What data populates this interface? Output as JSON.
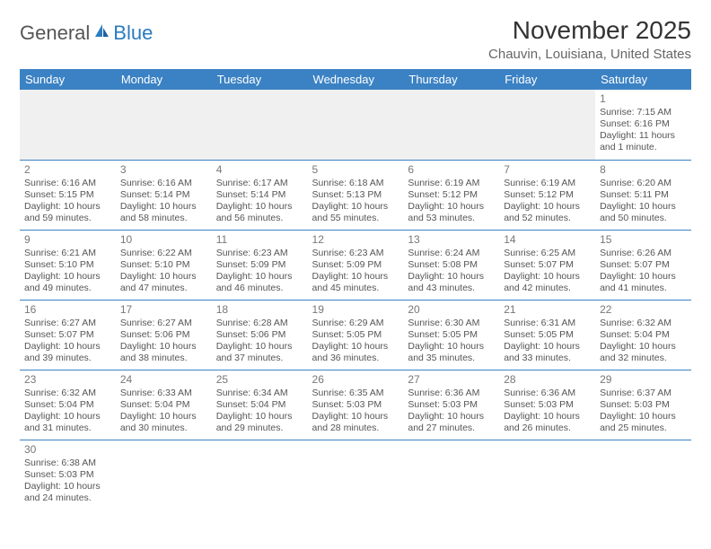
{
  "logo": {
    "general": "General",
    "blue": "Blue"
  },
  "month_title": "November 2025",
  "location": "Chauvin, Louisiana, United States",
  "colors": {
    "header_bg": "#3b82c4",
    "header_text": "#ffffff",
    "cell_border": "#3b82c4",
    "text": "#555555",
    "empty_bg": "#f0f0f0"
  },
  "weekdays": [
    "Sunday",
    "Monday",
    "Tuesday",
    "Wednesday",
    "Thursday",
    "Friday",
    "Saturday"
  ],
  "weeks": [
    [
      null,
      null,
      null,
      null,
      null,
      null,
      {
        "day": "1",
        "sunrise": "Sunrise: 7:15 AM",
        "sunset": "Sunset: 6:16 PM",
        "daylight1": "Daylight: 11 hours",
        "daylight2": "and 1 minute."
      }
    ],
    [
      {
        "day": "2",
        "sunrise": "Sunrise: 6:16 AM",
        "sunset": "Sunset: 5:15 PM",
        "daylight1": "Daylight: 10 hours",
        "daylight2": "and 59 minutes."
      },
      {
        "day": "3",
        "sunrise": "Sunrise: 6:16 AM",
        "sunset": "Sunset: 5:14 PM",
        "daylight1": "Daylight: 10 hours",
        "daylight2": "and 58 minutes."
      },
      {
        "day": "4",
        "sunrise": "Sunrise: 6:17 AM",
        "sunset": "Sunset: 5:14 PM",
        "daylight1": "Daylight: 10 hours",
        "daylight2": "and 56 minutes."
      },
      {
        "day": "5",
        "sunrise": "Sunrise: 6:18 AM",
        "sunset": "Sunset: 5:13 PM",
        "daylight1": "Daylight: 10 hours",
        "daylight2": "and 55 minutes."
      },
      {
        "day": "6",
        "sunrise": "Sunrise: 6:19 AM",
        "sunset": "Sunset: 5:12 PM",
        "daylight1": "Daylight: 10 hours",
        "daylight2": "and 53 minutes."
      },
      {
        "day": "7",
        "sunrise": "Sunrise: 6:19 AM",
        "sunset": "Sunset: 5:12 PM",
        "daylight1": "Daylight: 10 hours",
        "daylight2": "and 52 minutes."
      },
      {
        "day": "8",
        "sunrise": "Sunrise: 6:20 AM",
        "sunset": "Sunset: 5:11 PM",
        "daylight1": "Daylight: 10 hours",
        "daylight2": "and 50 minutes."
      }
    ],
    [
      {
        "day": "9",
        "sunrise": "Sunrise: 6:21 AM",
        "sunset": "Sunset: 5:10 PM",
        "daylight1": "Daylight: 10 hours",
        "daylight2": "and 49 minutes."
      },
      {
        "day": "10",
        "sunrise": "Sunrise: 6:22 AM",
        "sunset": "Sunset: 5:10 PM",
        "daylight1": "Daylight: 10 hours",
        "daylight2": "and 47 minutes."
      },
      {
        "day": "11",
        "sunrise": "Sunrise: 6:23 AM",
        "sunset": "Sunset: 5:09 PM",
        "daylight1": "Daylight: 10 hours",
        "daylight2": "and 46 minutes."
      },
      {
        "day": "12",
        "sunrise": "Sunrise: 6:23 AM",
        "sunset": "Sunset: 5:09 PM",
        "daylight1": "Daylight: 10 hours",
        "daylight2": "and 45 minutes."
      },
      {
        "day": "13",
        "sunrise": "Sunrise: 6:24 AM",
        "sunset": "Sunset: 5:08 PM",
        "daylight1": "Daylight: 10 hours",
        "daylight2": "and 43 minutes."
      },
      {
        "day": "14",
        "sunrise": "Sunrise: 6:25 AM",
        "sunset": "Sunset: 5:07 PM",
        "daylight1": "Daylight: 10 hours",
        "daylight2": "and 42 minutes."
      },
      {
        "day": "15",
        "sunrise": "Sunrise: 6:26 AM",
        "sunset": "Sunset: 5:07 PM",
        "daylight1": "Daylight: 10 hours",
        "daylight2": "and 41 minutes."
      }
    ],
    [
      {
        "day": "16",
        "sunrise": "Sunrise: 6:27 AM",
        "sunset": "Sunset: 5:07 PM",
        "daylight1": "Daylight: 10 hours",
        "daylight2": "and 39 minutes."
      },
      {
        "day": "17",
        "sunrise": "Sunrise: 6:27 AM",
        "sunset": "Sunset: 5:06 PM",
        "daylight1": "Daylight: 10 hours",
        "daylight2": "and 38 minutes."
      },
      {
        "day": "18",
        "sunrise": "Sunrise: 6:28 AM",
        "sunset": "Sunset: 5:06 PM",
        "daylight1": "Daylight: 10 hours",
        "daylight2": "and 37 minutes."
      },
      {
        "day": "19",
        "sunrise": "Sunrise: 6:29 AM",
        "sunset": "Sunset: 5:05 PM",
        "daylight1": "Daylight: 10 hours",
        "daylight2": "and 36 minutes."
      },
      {
        "day": "20",
        "sunrise": "Sunrise: 6:30 AM",
        "sunset": "Sunset: 5:05 PM",
        "daylight1": "Daylight: 10 hours",
        "daylight2": "and 35 minutes."
      },
      {
        "day": "21",
        "sunrise": "Sunrise: 6:31 AM",
        "sunset": "Sunset: 5:05 PM",
        "daylight1": "Daylight: 10 hours",
        "daylight2": "and 33 minutes."
      },
      {
        "day": "22",
        "sunrise": "Sunrise: 6:32 AM",
        "sunset": "Sunset: 5:04 PM",
        "daylight1": "Daylight: 10 hours",
        "daylight2": "and 32 minutes."
      }
    ],
    [
      {
        "day": "23",
        "sunrise": "Sunrise: 6:32 AM",
        "sunset": "Sunset: 5:04 PM",
        "daylight1": "Daylight: 10 hours",
        "daylight2": "and 31 minutes."
      },
      {
        "day": "24",
        "sunrise": "Sunrise: 6:33 AM",
        "sunset": "Sunset: 5:04 PM",
        "daylight1": "Daylight: 10 hours",
        "daylight2": "and 30 minutes."
      },
      {
        "day": "25",
        "sunrise": "Sunrise: 6:34 AM",
        "sunset": "Sunset: 5:04 PM",
        "daylight1": "Daylight: 10 hours",
        "daylight2": "and 29 minutes."
      },
      {
        "day": "26",
        "sunrise": "Sunrise: 6:35 AM",
        "sunset": "Sunset: 5:03 PM",
        "daylight1": "Daylight: 10 hours",
        "daylight2": "and 28 minutes."
      },
      {
        "day": "27",
        "sunrise": "Sunrise: 6:36 AM",
        "sunset": "Sunset: 5:03 PM",
        "daylight1": "Daylight: 10 hours",
        "daylight2": "and 27 minutes."
      },
      {
        "day": "28",
        "sunrise": "Sunrise: 6:36 AM",
        "sunset": "Sunset: 5:03 PM",
        "daylight1": "Daylight: 10 hours",
        "daylight2": "and 26 minutes."
      },
      {
        "day": "29",
        "sunrise": "Sunrise: 6:37 AM",
        "sunset": "Sunset: 5:03 PM",
        "daylight1": "Daylight: 10 hours",
        "daylight2": "and 25 minutes."
      }
    ],
    [
      {
        "day": "30",
        "sunrise": "Sunrise: 6:38 AM",
        "sunset": "Sunset: 5:03 PM",
        "daylight1": "Daylight: 10 hours",
        "daylight2": "and 24 minutes."
      },
      null,
      null,
      null,
      null,
      null,
      null
    ]
  ]
}
